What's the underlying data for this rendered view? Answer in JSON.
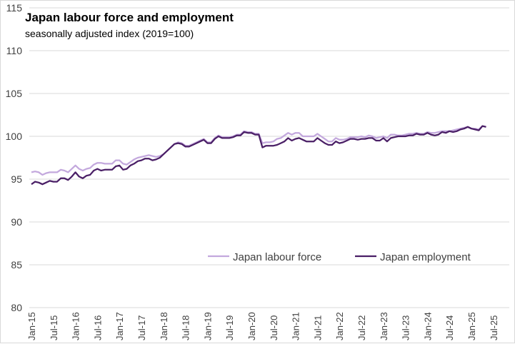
{
  "chart_data": {
    "type": "line",
    "title": "Japan labour force and employment",
    "subtitle": "seasonally adjusted index (2019=100)",
    "xlabel": "",
    "ylabel": "",
    "ylim": [
      80,
      115
    ],
    "yticks": [
      80,
      85,
      90,
      95,
      100,
      105,
      110,
      115
    ],
    "xticklabels": [
      "Jan-15",
      "Jul-15",
      "Jan-16",
      "Jul-16",
      "Jan-17",
      "Jul-17",
      "Jan-18",
      "Jul-18",
      "Jan-19",
      "Jul-19",
      "Jan-20",
      "Jul-20",
      "Jan-21",
      "Jul-21",
      "Jan-22",
      "Jul-22",
      "Jan-23",
      "Jul-23",
      "Jan-24",
      "Jul-24",
      "Jan-25",
      "Jul-25"
    ],
    "x_start": "Jan-15",
    "x_frequency": "monthly",
    "grid": true,
    "legend_position": "bottom-center",
    "series": [
      {
        "name": "Japan labour force",
        "color": "#c3a8dd",
        "values": [
          95.8,
          95.9,
          95.8,
          95.5,
          95.7,
          95.8,
          95.8,
          95.8,
          96.1,
          96.0,
          95.8,
          96.2,
          96.6,
          96.2,
          96.0,
          96.2,
          96.3,
          96.7,
          96.9,
          96.9,
          96.8,
          96.8,
          96.8,
          97.2,
          97.2,
          96.8,
          96.7,
          97.0,
          97.3,
          97.5,
          97.6,
          97.7,
          97.8,
          97.7,
          97.6,
          97.7,
          97.9,
          98.3,
          98.7,
          99.1,
          99.3,
          99.2,
          98.9,
          98.9,
          99.1,
          99.3,
          99.5,
          99.7,
          99.3,
          99.3,
          99.8,
          100.1,
          99.9,
          99.9,
          99.9,
          100.0,
          100.2,
          100.2,
          100.6,
          100.5,
          100.5,
          100.3,
          100.3,
          99.2,
          99.3,
          99.3,
          99.4,
          99.7,
          99.8,
          100.1,
          100.4,
          100.2,
          100.4,
          100.4,
          100.0,
          100.0,
          100.0,
          100.0,
          100.3,
          100.0,
          99.7,
          99.4,
          99.4,
          99.8,
          99.6,
          99.6,
          99.7,
          99.9,
          99.9,
          99.9,
          100.0,
          99.9,
          100.1,
          100.0,
          99.8,
          99.9,
          100.0,
          99.8,
          100.2,
          100.2,
          100.1,
          100.1,
          100.2,
          100.3,
          100.3,
          100.4,
          100.3,
          100.3,
          100.5,
          100.4,
          100.4,
          100.5,
          100.6,
          100.6,
          100.6,
          100.7,
          100.8,
          100.9,
          101.0,
          101.1,
          100.9,
          100.9,
          100.8,
          101.2,
          101.1
        ]
      },
      {
        "name": "Japan employment",
        "color": "#4a1f66",
        "values": [
          94.4,
          94.7,
          94.6,
          94.4,
          94.6,
          94.8,
          94.7,
          94.7,
          95.1,
          95.1,
          94.9,
          95.3,
          95.8,
          95.3,
          95.1,
          95.4,
          95.5,
          96.0,
          96.2,
          96.0,
          96.1,
          96.1,
          96.1,
          96.5,
          96.6,
          96.1,
          96.2,
          96.6,
          96.8,
          97.1,
          97.2,
          97.4,
          97.4,
          97.2,
          97.3,
          97.5,
          97.9,
          98.3,
          98.7,
          99.1,
          99.2,
          99.1,
          98.8,
          98.8,
          99.0,
          99.2,
          99.4,
          99.6,
          99.2,
          99.2,
          99.7,
          100.0,
          99.8,
          99.8,
          99.8,
          99.9,
          100.1,
          100.1,
          100.5,
          100.4,
          100.4,
          100.2,
          100.2,
          98.7,
          98.9,
          98.9,
          98.9,
          99.0,
          99.2,
          99.4,
          99.8,
          99.5,
          99.7,
          99.8,
          99.6,
          99.4,
          99.4,
          99.4,
          99.8,
          99.5,
          99.2,
          99.0,
          99.0,
          99.4,
          99.2,
          99.3,
          99.5,
          99.7,
          99.7,
          99.6,
          99.7,
          99.7,
          99.8,
          99.8,
          99.5,
          99.5,
          99.8,
          99.4,
          99.8,
          99.9,
          100.0,
          100.0,
          100.0,
          100.1,
          100.1,
          100.3,
          100.2,
          100.2,
          100.4,
          100.2,
          100.1,
          100.2,
          100.5,
          100.4,
          100.6,
          100.5,
          100.6,
          100.8,
          100.9,
          101.1,
          100.9,
          100.8,
          100.7,
          101.2,
          101.1
        ]
      }
    ]
  }
}
